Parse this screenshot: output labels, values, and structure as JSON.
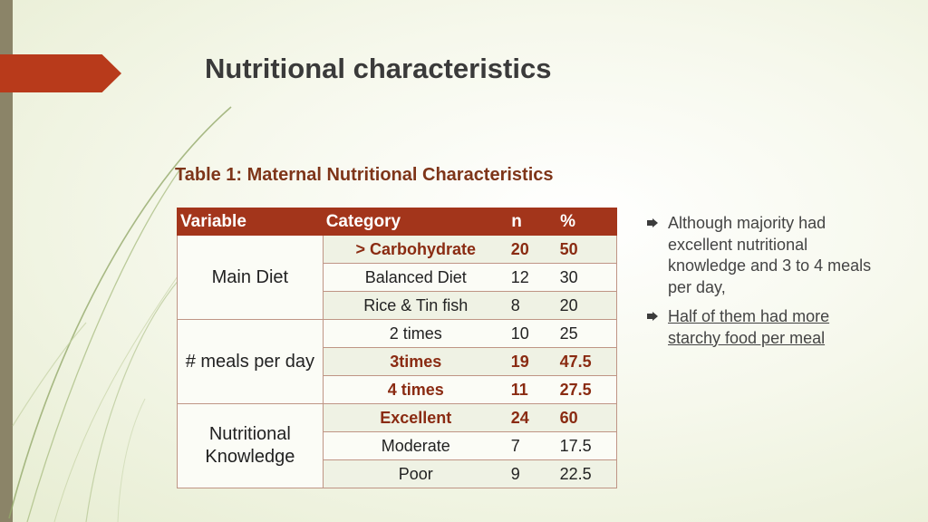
{
  "slide": {
    "title": "Nutritional characteristics"
  },
  "table": {
    "caption": "Table 1: Maternal Nutritional Characteristics",
    "headers": {
      "variable": "Variable",
      "category": "Category",
      "n": "n",
      "percent": "%"
    },
    "groups": [
      {
        "variable": "Main Diet",
        "rows": [
          {
            "category": "> Carbohydrate",
            "n": "20",
            "percent": "50",
            "bold": true
          },
          {
            "category": "Balanced Diet",
            "n": "12",
            "percent": "30",
            "bold": false
          },
          {
            "category": "Rice & Tin fish",
            "n": "8",
            "percent": "20",
            "bold": false
          }
        ]
      },
      {
        "variable": "# meals per day",
        "rows": [
          {
            "category": "2 times",
            "n": "10",
            "percent": "25",
            "bold": false
          },
          {
            "category": "3times",
            "n": "19",
            "percent": "47.5",
            "bold": true
          },
          {
            "category": "4 times",
            "n": "11",
            "percent": "27.5",
            "bold": true
          }
        ]
      },
      {
        "variable": "Nutritional Knowledge",
        "rows": [
          {
            "category": "Excellent",
            "n": "24",
            "percent": "60",
            "bold": true
          },
          {
            "category": "Moderate",
            "n": "7",
            "percent": "17.5",
            "bold": false
          },
          {
            "category": "Poor",
            "n": "9",
            "percent": "22.5",
            "bold": false
          }
        ]
      }
    ]
  },
  "bullets": [
    {
      "text": "Although majority had excellent nutritional knowledge and 3 to 4 meals per day,",
      "underline": false
    },
    {
      "text": "Half of them had more starchy food per meal",
      "underline": true
    }
  ],
  "colors": {
    "accent": "#b83a1b",
    "header_bg": "#a3351b",
    "highlight_text": "#8a2b12",
    "caption_text": "#7e3519"
  }
}
